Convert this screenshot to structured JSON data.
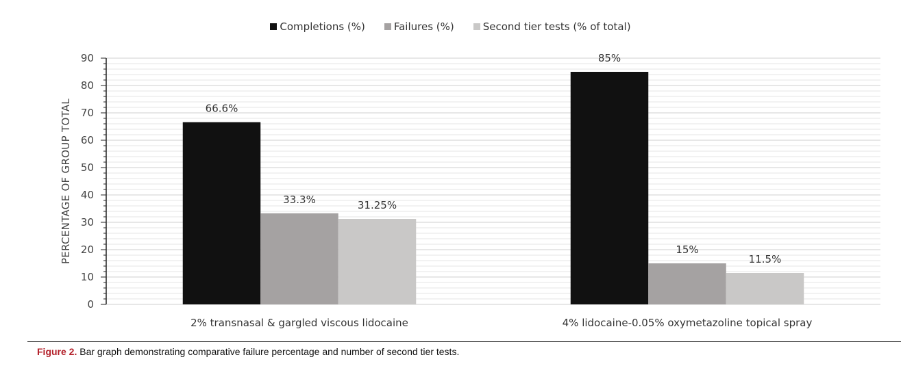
{
  "chart_data": {
    "type": "bar",
    "title": "",
    "xlabel": "",
    "ylabel": "PERCENTAGE OF GROUP TOTAL",
    "ylim": [
      0,
      90
    ],
    "yticks": [
      0,
      10,
      20,
      30,
      40,
      50,
      60,
      70,
      80,
      90
    ],
    "grid": true,
    "legend_position": "top",
    "categories": [
      "2% transnasal & gargled viscous lidocaine",
      "4% lidocaine-0.05% oxymetazoline topical spray"
    ],
    "series": [
      {
        "name": "Completions (%)",
        "color": "#111111",
        "values": [
          66.6,
          85
        ],
        "labels": [
          "66.6%",
          "85%"
        ]
      },
      {
        "name": "Failures (%)",
        "color": "#a5a2a2",
        "values": [
          33.3,
          15
        ],
        "labels": [
          "33.3%",
          "15%"
        ]
      },
      {
        "name": "Second tier tests (% of total)",
        "color": "#c9c8c7",
        "values": [
          31.25,
          11.5
        ],
        "labels": [
          "31.25%",
          "11.5%"
        ]
      }
    ]
  },
  "caption": {
    "label": "Figure 2.",
    "text": " Bar graph demonstrating comparative failure percentage and number of second tier tests."
  }
}
